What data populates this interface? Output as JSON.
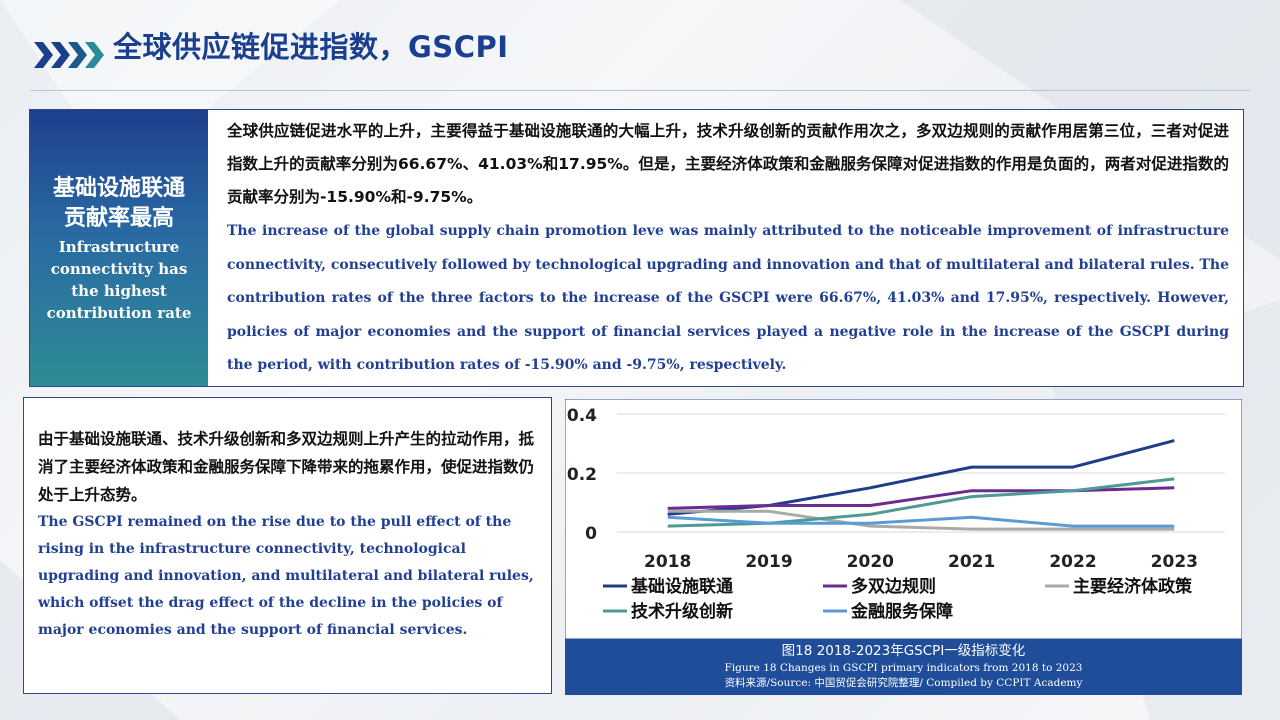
{
  "header": {
    "title": "全球供应链促进指数，GSCPI"
  },
  "highlight": {
    "title_cn_line1": "基础设施联通",
    "title_cn_line2": "贡献率最高",
    "title_en": "Infrastructure connectivity has the highest contribution rate"
  },
  "top_text": {
    "cn": "全球供应链促进水平的上升，主要得益于基础设施联通的大幅上升，技术升级创新的贡献作用次之，多双边规则的贡献作用居第三位，三者对促进指数上升的贡献率分别为66.67%、41.03%和17.95%。但是，主要经济体政策和金融服务保障对促进指数的作用是负面的，两者对促进指数的贡献率分别为-15.90%和-9.75%。",
    "en": "The increase of the global supply chain promotion leve was mainly attributed to the noticeable improvement of infrastructure connectivity, consecutively followed by technological upgrading and innovation and that of multilateral and bilateral rules. The contribution rates of the three factors to the increase of the GSCPI were 66.67%, 41.03% and 17.95%, respectively. However, policies of major economies and the support of financial services played a negative role in the increase of the GSCPI during the period, with contribution rates of -15.90% and -9.75%, respectively."
  },
  "left_text": {
    "cn": "由于基础设施联通、技术升级创新和多双边规则上升产生的拉动作用，抵消了主要经济体政策和金融服务保障下降带来的拖累作用，使促进指数仍处于上升态势。",
    "en": "The GSCPI remained on the rise due to the pull effect of the rising in the infrastructure connectivity, technological upgrading and innovation, and  multilateral and bilateral rules, which offset the drag effect of the decline in the policies of major economies and the support of financial services."
  },
  "caption": {
    "cn": "图18 2018-2023年GSCPI一级指标变化",
    "en": "Figure 18 Changes in GSCPI  primary indicators from  2018  to 2023",
    "source": "资料来源/Source: 中国贸促会研究院整理/  Compiled by CCPIT Academy"
  },
  "chart_data": {
    "type": "line",
    "x": [
      "2018",
      "2019",
      "2020",
      "2021",
      "2022",
      "2023"
    ],
    "ylim": [
      0,
      0.4
    ],
    "yticks": [
      "0",
      "0.2",
      "0.4"
    ],
    "grid": true,
    "legend_position": "bottom",
    "series": [
      {
        "name": "基础设施联通",
        "color": "#1f3c88",
        "values": [
          0.06,
          0.09,
          0.15,
          0.22,
          0.22,
          0.31
        ]
      },
      {
        "name": "多双边规则",
        "color": "#6a2c91",
        "values": [
          0.08,
          0.09,
          0.09,
          0.14,
          0.14,
          0.15
        ]
      },
      {
        "name": "主要经济体政策",
        "color": "#a9a9a9",
        "values": [
          0.07,
          0.07,
          0.02,
          0.01,
          0.01,
          0.01
        ]
      },
      {
        "name": "技术升级创新",
        "color": "#4f9a95",
        "values": [
          0.02,
          0.03,
          0.06,
          0.12,
          0.14,
          0.18
        ]
      },
      {
        "name": "金融服务保障",
        "color": "#5b9bd5",
        "values": [
          0.05,
          0.03,
          0.03,
          0.05,
          0.02,
          0.02
        ]
      }
    ]
  }
}
